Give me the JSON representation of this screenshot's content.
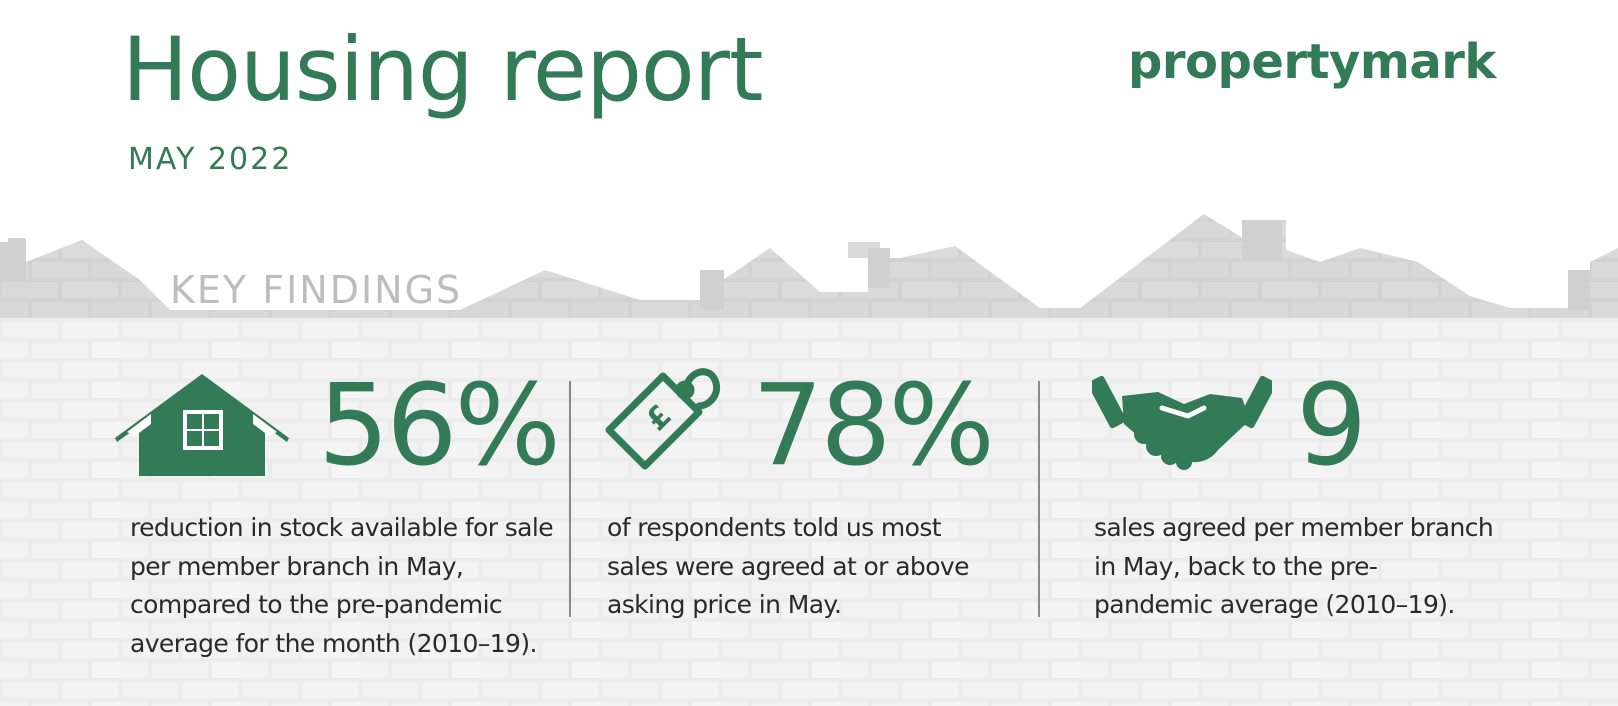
{
  "header": {
    "title": "Housing report",
    "date": "MAY 2022",
    "brand": "propertymark"
  },
  "section": {
    "heading": "KEY FINDINGS"
  },
  "findings": [
    {
      "icon": "house-icon",
      "value": "56%",
      "description": "reduction in stock available for sale per member branch in May, compared to the pre-pandemic average for the month (2010–19)."
    },
    {
      "icon": "price-tag-icon",
      "value": "78%",
      "description": "of respondents told us most sales were agreed at or above asking price in May."
    },
    {
      "icon": "handshake-icon",
      "value": "9",
      "description": "sales agreed per member branch in May, back to the pre-pandemic average (2010–19)."
    }
  ],
  "colors": {
    "accent": "#337a56",
    "background_wall": "#eeeeee",
    "muted_text": "#bdbdbd",
    "body_text": "#2a2a2a"
  }
}
